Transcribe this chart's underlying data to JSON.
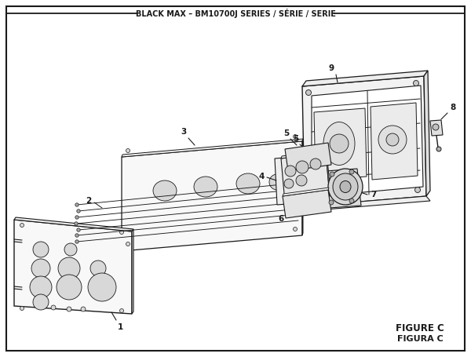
{
  "title": "BLACK MAX – BM10700J SERIES / SÉRIE / SERIE",
  "figure_label_1": "FIGURE C",
  "figure_label_2": "FIGURA C",
  "bg_color": "#ffffff",
  "lc": "#1a1a1a",
  "fill_panel": "#f8f8f8",
  "fill_mid": "#eeeeee",
  "fill_dark": "#e0e0e0",
  "fill_hole": "#d8d8d8"
}
